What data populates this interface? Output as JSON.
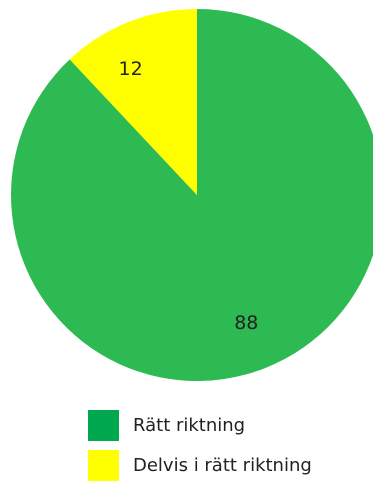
{
  "chart_data": {
    "type": "pie",
    "categories": [
      "Rätt riktning",
      "Delvis i rätt riktning"
    ],
    "values": [
      88,
      12
    ],
    "data_labels": [
      "88",
      "12"
    ],
    "slice_colors": [
      "#2dba52",
      "#ffff00"
    ],
    "legend_colors": [
      "#00a84f",
      "#ffff00"
    ],
    "legend_position": "bottom",
    "start_angle_deg": 0,
    "direction": "clockwise",
    "title": "",
    "xlabel": "",
    "ylabel": ""
  },
  "legend": {
    "items": [
      {
        "label": "Rätt riktning"
      },
      {
        "label": "Delvis i rätt riktning"
      }
    ]
  }
}
